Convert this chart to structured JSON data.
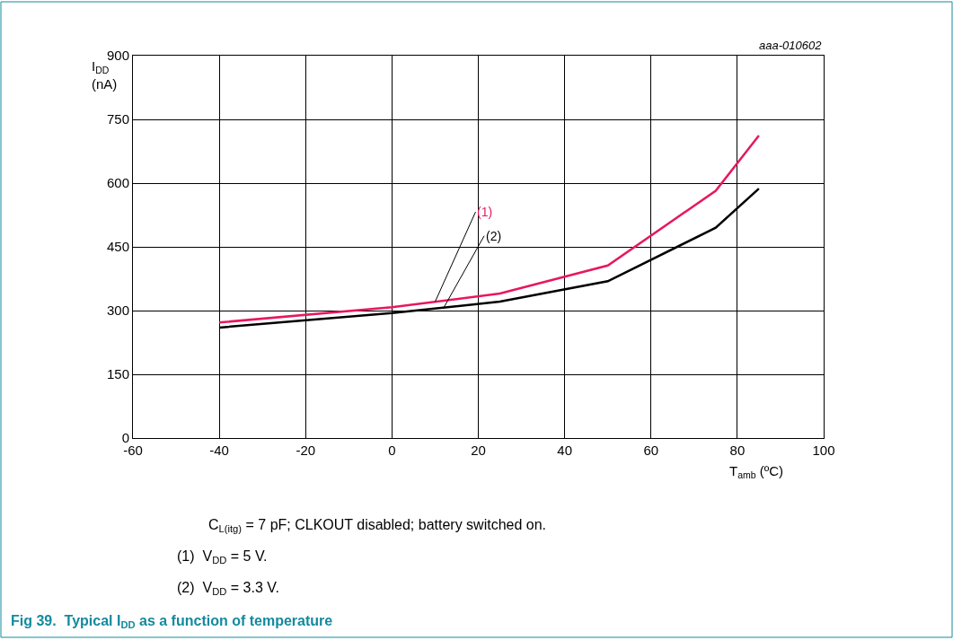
{
  "chart_data": {
    "type": "line",
    "title": "Fig 39.  Typical I$_{DD}$ as a function of temperature",
    "xlabel": "T$_{amb}$ (ºC)",
    "ylabel": "I$_{DD}$\n(nA)",
    "x": [
      -40,
      0,
      25,
      50,
      75,
      85
    ],
    "series": [
      {
        "name": "(1)",
        "color": "#e8175d",
        "values": [
          272,
          308,
          340,
          406,
          582,
          712
        ]
      },
      {
        "name": "(2)",
        "color": "#000000",
        "values": [
          260,
          294,
          321,
          369,
          495,
          587
        ]
      }
    ],
    "xlim": [
      -60,
      100
    ],
    "xticks": [
      -60,
      -40,
      -20,
      0,
      20,
      40,
      60,
      80,
      100
    ],
    "ylim": [
      0,
      900
    ],
    "yticks": [
      0,
      150,
      300,
      450,
      600,
      750,
      900
    ],
    "grid": true,
    "legend": false,
    "marker": "none",
    "line_style": "solid",
    "annotations": [
      "aaa-010602",
      "C$_{L(itg)}$ = 7 pF; CLKOUT disabled; battery switched on.",
      "(1)  V$_{DD}$ = 5 V.",
      "(2)  V$_{DD}$ = 3.3 V."
    ]
  }
}
